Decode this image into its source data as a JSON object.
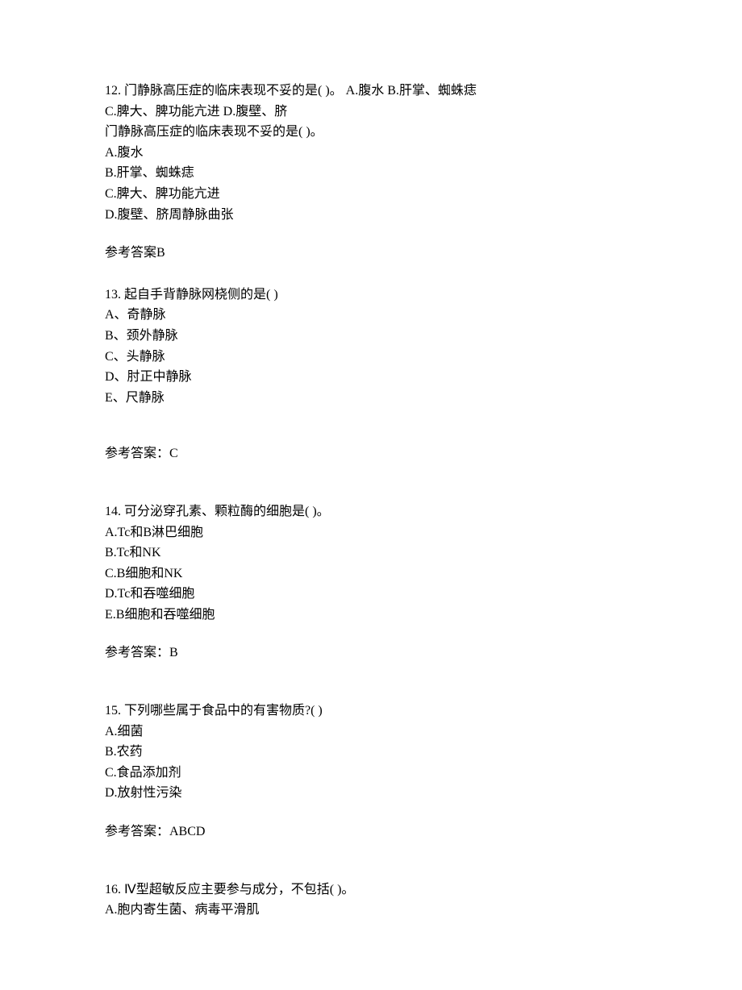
{
  "questions": [
    {
      "number": "12.",
      "stem_line1": "门静脉高压症的临床表现不妥的是(  )。 A.腹水 B.肝掌、蜘蛛痣",
      "stem_line2": "C.脾大、脾功能亢进 D.腹壁、脐",
      "stem_line3": "门静脉高压症的临床表现不妥的是(  )。",
      "options": [
        "A.腹水",
        "B.肝掌、蜘蛛痣",
        "C.脾大、脾功能亢进",
        "D.腹壁、脐周静脉曲张"
      ],
      "answer_label": "参考答案B"
    },
    {
      "number": "13.",
      "stem": "起自手背静脉网桡侧的是(  )",
      "options": [
        "A、奇静脉",
        "B、颈外静脉",
        "C、头静脉",
        "D、肘正中静脉",
        "E、尺静脉"
      ],
      "answer_label": "参考答案：C"
    },
    {
      "number": "14.",
      "stem": "可分泌穿孔素、颗粒酶的细胞是(  )。",
      "options": [
        "A.Tc和B淋巴细胞",
        "B.Tc和NK",
        "C.B细胞和NK",
        "D.Tc和吞噬细胞",
        "E.B细胞和吞噬细胞"
      ],
      "answer_label": "参考答案：B"
    },
    {
      "number": "15.",
      "stem": "下列哪些属于食品中的有害物质?(  )",
      "options": [
        "A.细菌",
        "B.农药",
        "C.食品添加剂",
        "D.放射性污染"
      ],
      "answer_label": "参考答案：ABCD"
    },
    {
      "number": "16.",
      "stem": "Ⅳ型超敏反应主要参与成分，不包括(  )。",
      "options": [
        "A.胞内寄生菌、病毒平滑肌"
      ],
      "answer_label": ""
    }
  ]
}
